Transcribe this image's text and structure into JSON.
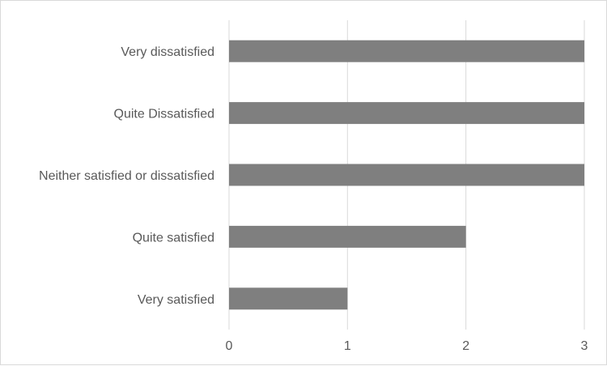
{
  "chart_data": {
    "type": "bar",
    "orientation": "horizontal",
    "categories": [
      "Very dissatisfied",
      "Quite Dissatisfied",
      "Neither satisfied or dissatisfied",
      "Quite satisfied",
      "Very satisfied"
    ],
    "values": [
      3,
      3,
      3,
      2,
      1
    ],
    "xlim": [
      0,
      3
    ],
    "x_ticks": [
      0,
      1,
      2,
      3
    ],
    "grid": true,
    "legend": "none",
    "bar_color": "#7f7f7f",
    "grid_color": "#d9d9d9",
    "title": "",
    "xlabel": "",
    "ylabel": ""
  }
}
